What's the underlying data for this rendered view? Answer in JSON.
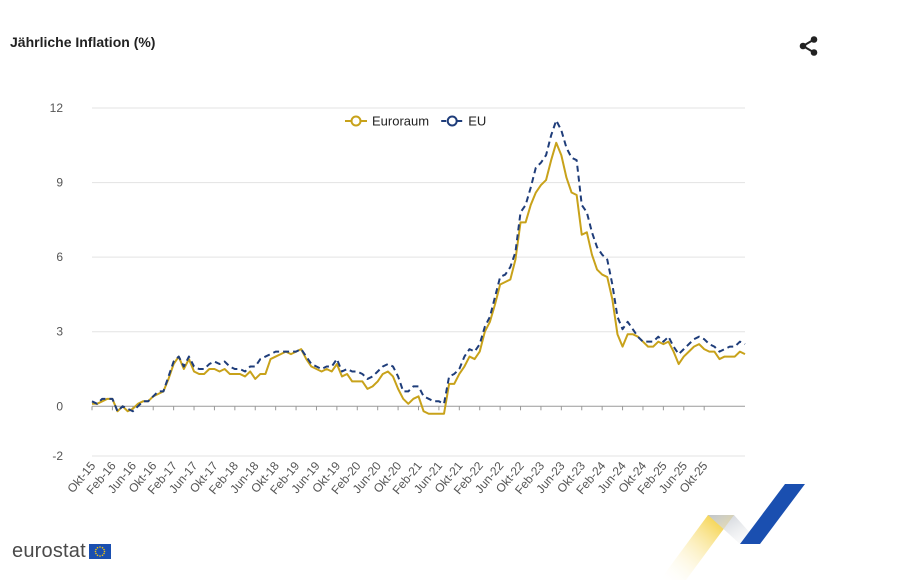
{
  "header": {
    "title": "Jährliche Inflation (%)"
  },
  "icons": {
    "share": "share-icon",
    "flag": "eu-flag-icon"
  },
  "footer": {
    "brand": "eurostat"
  },
  "colors": {
    "euroraum": "#c8a21a",
    "eu": "#1f3d7a",
    "grid": "#e3e3e3",
    "axis": "#9a9a9a",
    "accent_blue": "#1a4fb0",
    "accent_yellow": "#f2c410"
  },
  "chart_data": {
    "type": "line",
    "title": "Jährliche Inflation (%)",
    "xlabel": "",
    "ylabel": "",
    "ylim": [
      -2,
      12
    ],
    "yticks": [
      -2,
      0,
      3,
      6,
      9,
      12
    ],
    "x_start": "Okt-15",
    "x_end": "Okt-25",
    "x_tick_labels": [
      "Okt-15",
      "Feb-16",
      "Jun-16",
      "Okt-16",
      "Feb-17",
      "Jun-17",
      "Okt-17",
      "Feb-18",
      "Jun-18",
      "Okt-18",
      "Feb-19",
      "Jun-19",
      "Okt-19",
      "Feb-20",
      "Jun-20",
      "Okt-20",
      "Feb-21",
      "Jun-21",
      "Okt-21",
      "Feb-22",
      "Jun-22",
      "Okt-22",
      "Feb-23",
      "Jun-23",
      "Okt-23",
      "Feb-24",
      "Jun-24",
      "Okt-24",
      "Feb-25",
      "Jun-25",
      "Okt-25"
    ],
    "legend": [
      "Euroraum",
      "EU"
    ],
    "legend_position": "top-center",
    "series": [
      {
        "name": "Euroraum",
        "style": "solid",
        "values": [
          0.1,
          0.1,
          0.2,
          0.3,
          0.3,
          -0.2,
          0.0,
          -0.2,
          -0.1,
          0.1,
          0.2,
          0.2,
          0.4,
          0.5,
          0.6,
          1.1,
          1.7,
          2.0,
          1.5,
          1.9,
          1.4,
          1.3,
          1.3,
          1.5,
          1.5,
          1.4,
          1.5,
          1.3,
          1.3,
          1.3,
          1.2,
          1.4,
          1.1,
          1.3,
          1.3,
          1.9,
          2.0,
          2.1,
          2.2,
          2.1,
          2.2,
          2.3,
          1.9,
          1.6,
          1.5,
          1.4,
          1.5,
          1.4,
          1.7,
          1.2,
          1.3,
          1.0,
          1.0,
          1.0,
          0.7,
          0.8,
          1.0,
          1.3,
          1.4,
          1.2,
          0.7,
          0.3,
          0.1,
          0.3,
          0.4,
          -0.2,
          -0.3,
          -0.3,
          -0.3,
          -0.3,
          0.9,
          0.9,
          1.3,
          1.6,
          2.0,
          1.9,
          2.2,
          3.0,
          3.4,
          4.1,
          4.9,
          5.0,
          5.1,
          5.9,
          7.4,
          7.4,
          8.1,
          8.6,
          8.9,
          9.1,
          9.9,
          10.6,
          10.1,
          9.2,
          8.6,
          8.5,
          6.9,
          7.0,
          6.1,
          5.5,
          5.3,
          5.2,
          4.3,
          2.9,
          2.4,
          2.9,
          2.9,
          2.8,
          2.6,
          2.4,
          2.4,
          2.6,
          2.5,
          2.6,
          2.2,
          1.7,
          2.0,
          2.2,
          2.4,
          2.5,
          2.3,
          2.2,
          2.2,
          1.9,
          2.0,
          2.0,
          2.0,
          2.2,
          2.1
        ]
      },
      {
        "name": "EU",
        "style": "dashed",
        "values": [
          0.2,
          0.1,
          0.3,
          0.3,
          0.3,
          -0.2,
          0.0,
          -0.1,
          -0.2,
          0.0,
          0.2,
          0.2,
          0.4,
          0.6,
          0.6,
          1.2,
          1.8,
          2.0,
          1.6,
          2.0,
          1.6,
          1.5,
          1.5,
          1.7,
          1.8,
          1.7,
          1.8,
          1.6,
          1.5,
          1.5,
          1.4,
          1.6,
          1.6,
          1.9,
          2.0,
          2.1,
          2.2,
          2.2,
          2.2,
          2.2,
          2.2,
          2.3,
          2.0,
          1.7,
          1.6,
          1.5,
          1.6,
          1.6,
          1.9,
          1.4,
          1.5,
          1.4,
          1.4,
          1.3,
          1.1,
          1.2,
          1.4,
          1.6,
          1.7,
          1.6,
          1.2,
          0.6,
          0.6,
          0.8,
          0.8,
          0.4,
          0.3,
          0.2,
          0.2,
          0.1,
          1.2,
          1.3,
          1.5,
          2.0,
          2.3,
          2.2,
          2.5,
          3.2,
          3.6,
          4.4,
          5.2,
          5.3,
          5.6,
          6.2,
          7.8,
          8.1,
          8.8,
          9.6,
          9.8,
          10.1,
          10.9,
          11.5,
          11.1,
          10.4,
          10.0,
          9.9,
          8.1,
          7.8,
          7.0,
          6.4,
          6.1,
          5.9,
          4.9,
          3.6,
          3.1,
          3.4,
          3.1,
          2.8,
          2.6,
          2.6,
          2.6,
          2.8,
          2.6,
          2.8,
          2.4,
          2.1,
          2.3,
          2.5,
          2.7,
          2.8,
          2.7,
          2.5,
          2.4,
          2.2,
          2.3,
          2.4,
          2.4,
          2.6,
          2.5
        ]
      }
    ]
  }
}
